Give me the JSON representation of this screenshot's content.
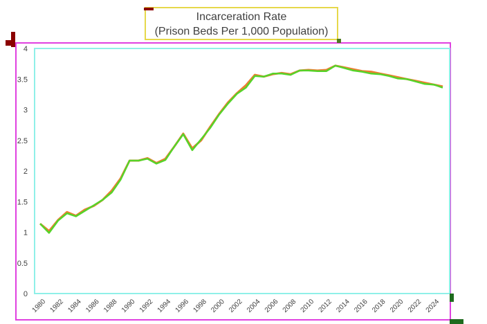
{
  "chart_data": {
    "type": "line",
    "title": [
      "Incarceration Rate",
      "(Prison Beds Per 1,000 Population)"
    ],
    "xlabel": "",
    "ylabel": "",
    "ylim": [
      0,
      4
    ],
    "xlim": [
      1980,
      2025
    ],
    "y_ticks": [
      "0",
      "0.5",
      "1",
      "1.5",
      "2",
      "2.5",
      "3",
      "3.5",
      "4"
    ],
    "x_ticks": [
      "1980",
      "1982",
      "1984",
      "1986",
      "1988",
      "1990",
      "1992",
      "1994",
      "1996",
      "1998",
      "2000",
      "2002",
      "2004",
      "2006",
      "2008",
      "2010",
      "2012",
      "2014",
      "2016",
      "2018",
      "2020",
      "2022",
      "2024"
    ],
    "grid": false,
    "legend": "none",
    "colors": {
      "series_a": "#ed7d31",
      "series_b": "#55d42a",
      "plot_border": "#8ff0e8",
      "outer_border": "#e040e0",
      "title_border": "#e6d84a"
    },
    "series": [
      {
        "values": [
          [
            1980,
            1.14
          ],
          [
            1981,
            1.02
          ],
          [
            1982,
            1.2
          ],
          [
            1983,
            1.33
          ],
          [
            1984,
            1.27
          ],
          [
            1985,
            1.37
          ],
          [
            1986,
            1.43
          ],
          [
            1987,
            1.53
          ],
          [
            1988,
            1.68
          ],
          [
            1989,
            1.88
          ],
          [
            1990,
            2.17
          ],
          [
            1991,
            2.17
          ],
          [
            1992,
            2.21
          ],
          [
            1993,
            2.13
          ],
          [
            1994,
            2.2
          ],
          [
            1995,
            2.4
          ],
          [
            1996,
            2.61
          ],
          [
            1997,
            2.37
          ],
          [
            1998,
            2.5
          ],
          [
            1999,
            2.72
          ],
          [
            2000,
            2.93
          ],
          [
            2001,
            3.12
          ],
          [
            2002,
            3.27
          ],
          [
            2003,
            3.4
          ],
          [
            2004,
            3.57
          ],
          [
            2005,
            3.54
          ],
          [
            2006,
            3.58
          ],
          [
            2007,
            3.6
          ],
          [
            2008,
            3.58
          ],
          [
            2009,
            3.64
          ],
          [
            2010,
            3.65
          ],
          [
            2011,
            3.64
          ],
          [
            2012,
            3.65
          ],
          [
            2013,
            3.72
          ],
          [
            2014,
            3.69
          ],
          [
            2015,
            3.66
          ],
          [
            2016,
            3.63
          ],
          [
            2017,
            3.62
          ],
          [
            2018,
            3.59
          ],
          [
            2019,
            3.56
          ],
          [
            2020,
            3.53
          ],
          [
            2021,
            3.5
          ],
          [
            2022,
            3.47
          ],
          [
            2023,
            3.44
          ],
          [
            2024,
            3.41
          ],
          [
            2025,
            3.38
          ]
        ]
      },
      {
        "values": [
          [
            1980,
            1.14
          ],
          [
            1981,
            0.99
          ],
          [
            1982,
            1.19
          ],
          [
            1983,
            1.31
          ],
          [
            1984,
            1.26
          ],
          [
            1985,
            1.35
          ],
          [
            1986,
            1.44
          ],
          [
            1987,
            1.53
          ],
          [
            1988,
            1.65
          ],
          [
            1989,
            1.86
          ],
          [
            1990,
            2.17
          ],
          [
            1991,
            2.17
          ],
          [
            1992,
            2.2
          ],
          [
            1993,
            2.12
          ],
          [
            1994,
            2.18
          ],
          [
            1995,
            2.4
          ],
          [
            1996,
            2.6
          ],
          [
            1997,
            2.34
          ],
          [
            1998,
            2.52
          ],
          [
            1999,
            2.7
          ],
          [
            2000,
            2.92
          ],
          [
            2001,
            3.1
          ],
          [
            2002,
            3.26
          ],
          [
            2003,
            3.36
          ],
          [
            2004,
            3.55
          ],
          [
            2005,
            3.54
          ],
          [
            2006,
            3.59
          ],
          [
            2007,
            3.59
          ],
          [
            2008,
            3.57
          ],
          [
            2009,
            3.64
          ],
          [
            2010,
            3.64
          ],
          [
            2011,
            3.63
          ],
          [
            2012,
            3.63
          ],
          [
            2013,
            3.72
          ],
          [
            2014,
            3.68
          ],
          [
            2015,
            3.64
          ],
          [
            2016,
            3.62
          ],
          [
            2017,
            3.59
          ],
          [
            2018,
            3.58
          ],
          [
            2019,
            3.55
          ],
          [
            2020,
            3.51
          ],
          [
            2021,
            3.5
          ],
          [
            2022,
            3.46
          ],
          [
            2023,
            3.42
          ],
          [
            2024,
            3.41
          ],
          [
            2025,
            3.36
          ]
        ]
      }
    ]
  }
}
